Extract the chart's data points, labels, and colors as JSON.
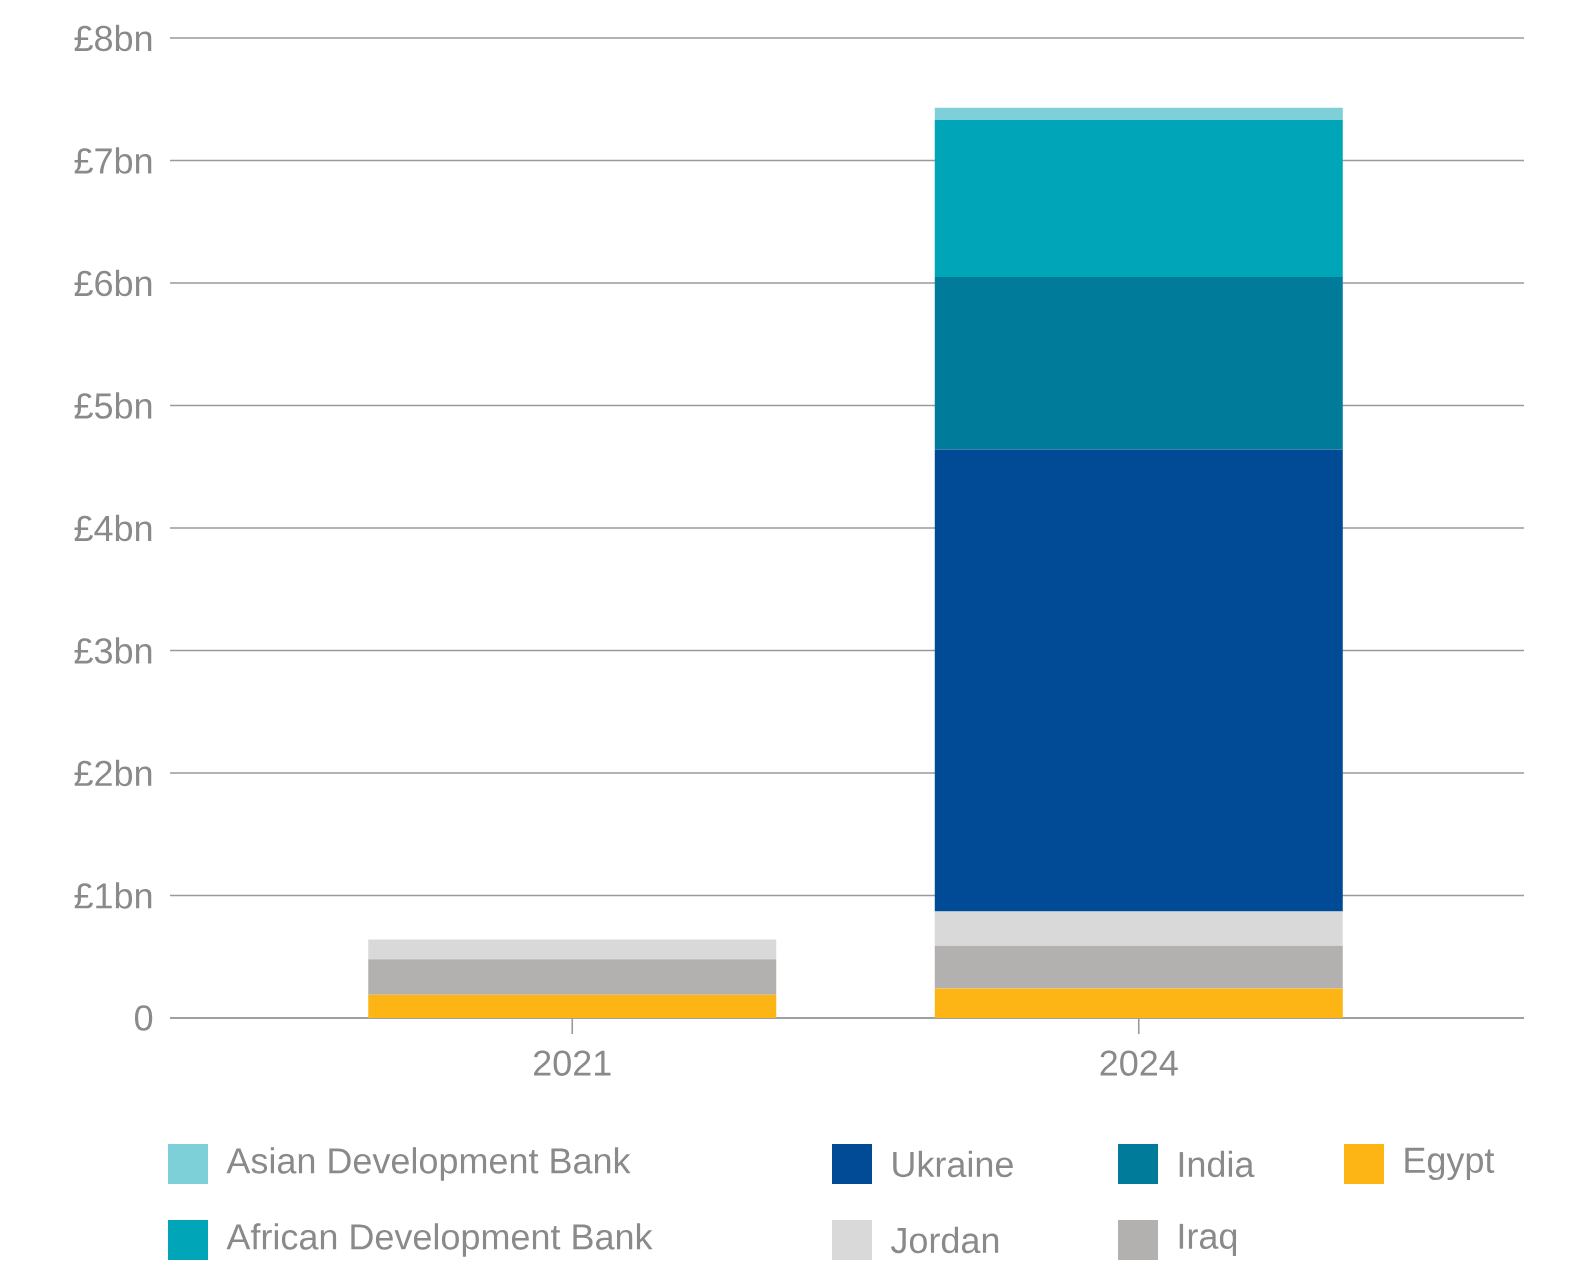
{
  "chart_data": {
    "type": "bar",
    "stacked": true,
    "categories": [
      "2021",
      "2024"
    ],
    "series": [
      {
        "name": "Egypt",
        "color": "#fdb515",
        "values": [
          0.19,
          0.24
        ]
      },
      {
        "name": "Iraq",
        "color": "#b2b1b0",
        "values": [
          0.29,
          0.35
        ]
      },
      {
        "name": "Jordan",
        "color": "#d9d9d9",
        "values": [
          0.16,
          0.28
        ]
      },
      {
        "name": "Ukraine",
        "color": "#004a96",
        "values": [
          null,
          3.77
        ]
      },
      {
        "name": "India",
        "color": "#007b9a",
        "values": [
          null,
          1.41
        ]
      },
      {
        "name": "African Development Bank",
        "color": "#00a5b8",
        "values": [
          null,
          1.28
        ]
      },
      {
        "name": "Asian Development Bank",
        "color": "#7dcfd8",
        "values": [
          null,
          0.1
        ]
      }
    ],
    "ylim": [
      0,
      8
    ],
    "yticks": [
      {
        "value": 0,
        "label": "0"
      },
      {
        "value": 1,
        "label": "£1bn"
      },
      {
        "value": 2,
        "label": "£2bn"
      },
      {
        "value": 3,
        "label": "£3bn"
      },
      {
        "value": 4,
        "label": "£4bn"
      },
      {
        "value": 5,
        "label": "£5bn"
      },
      {
        "value": 6,
        "label": "£6bn"
      },
      {
        "value": 7,
        "label": "£7bn"
      },
      {
        "value": 8,
        "label": "£8bn"
      }
    ],
    "grid": "y",
    "legend": "bottom"
  }
}
